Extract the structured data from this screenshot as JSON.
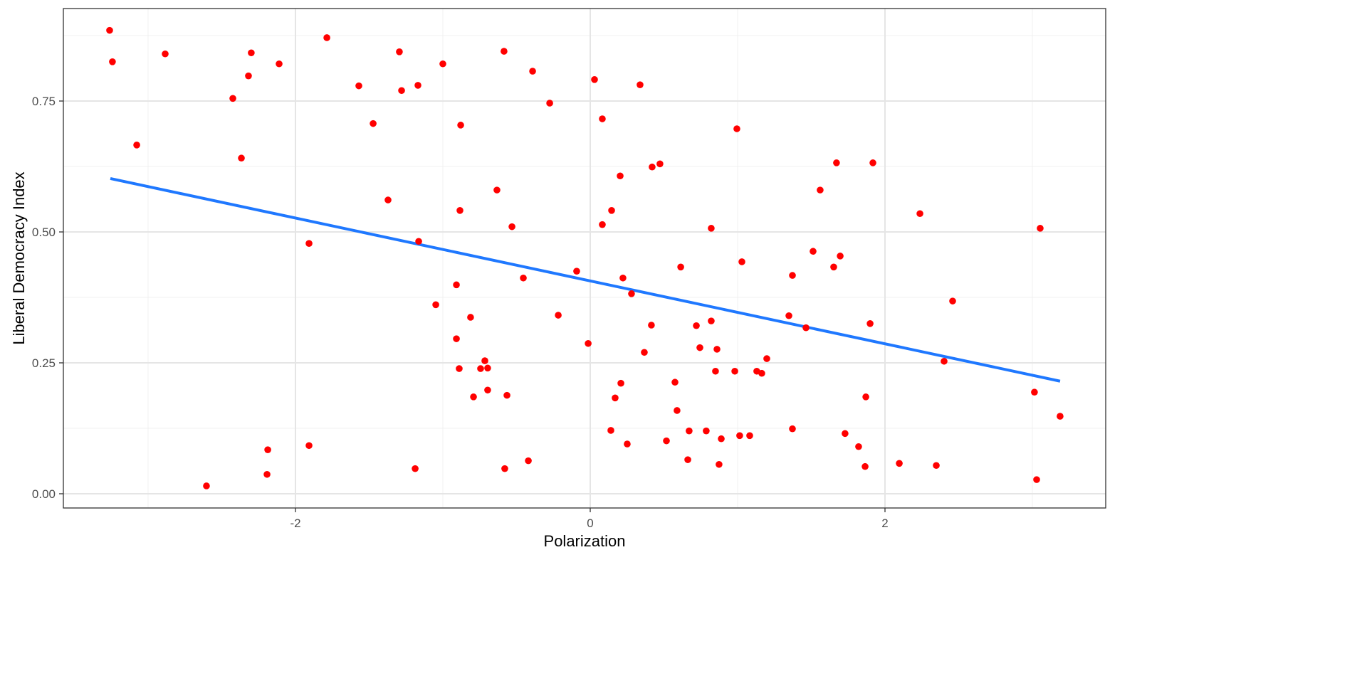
{
  "chart_data": {
    "type": "scatter",
    "title": "",
    "xlabel": "Polarization",
    "ylabel": "Liberal Democracy Index",
    "xlim": [
      -3.5,
      3.5
    ],
    "ylim": [
      -0.05,
      0.91
    ],
    "x_ticks": [
      -2,
      0,
      2
    ],
    "x_tick_labels": [
      "-2",
      "0",
      "2"
    ],
    "y_ticks": [
      0,
      0.25,
      0.5,
      0.75
    ],
    "y_tick_labels": [
      "0.00",
      "0.25",
      "0.50",
      "0.75"
    ],
    "grid": true,
    "legend": "none",
    "colors": {
      "points": "#FF0000",
      "fit_line": "#1F78FF"
    },
    "points": [
      [
        -3.261,
        0.885
      ],
      [
        -3.242,
        0.825
      ],
      [
        -3.077,
        0.666
      ],
      [
        -2.884,
        0.84
      ],
      [
        -2.604,
        0.015
      ],
      [
        -2.425,
        0.755
      ],
      [
        -2.367,
        0.641
      ],
      [
        -2.319,
        0.798
      ],
      [
        -2.3,
        0.842
      ],
      [
        -2.188,
        0.084
      ],
      [
        -2.193,
        0.037
      ],
      [
        -2.111,
        0.821
      ],
      [
        -1.908,
        0.478
      ],
      [
        -1.908,
        0.092
      ],
      [
        -1.787,
        0.871
      ],
      [
        -1.57,
        0.779
      ],
      [
        -1.473,
        0.707
      ],
      [
        -1.372,
        0.561
      ],
      [
        -1.295,
        0.844
      ],
      [
        -1.28,
        0.77
      ],
      [
        -1.188,
        0.048
      ],
      [
        -1.169,
        0.78
      ],
      [
        -1.164,
        0.482
      ],
      [
        -1.048,
        0.361
      ],
      [
        -1.0,
        0.821
      ],
      [
        -0.908,
        0.399
      ],
      [
        -0.908,
        0.296
      ],
      [
        -0.889,
        0.239
      ],
      [
        -0.884,
        0.541
      ],
      [
        -0.879,
        0.704
      ],
      [
        -0.812,
        0.337
      ],
      [
        -0.792,
        0.185
      ],
      [
        -0.744,
        0.239
      ],
      [
        -0.715,
        0.254
      ],
      [
        -0.696,
        0.24
      ],
      [
        -0.696,
        0.198
      ],
      [
        -0.633,
        0.58
      ],
      [
        -0.585,
        0.845
      ],
      [
        -0.58,
        0.048
      ],
      [
        -0.565,
        0.188
      ],
      [
        -0.531,
        0.51
      ],
      [
        -0.454,
        0.412
      ],
      [
        -0.42,
        0.063
      ],
      [
        -0.391,
        0.807
      ],
      [
        -0.275,
        0.746
      ],
      [
        -0.217,
        0.341
      ],
      [
        -0.092,
        0.425
      ],
      [
        -0.014,
        0.287
      ],
      [
        0.029,
        0.791
      ],
      [
        0.082,
        0.716
      ],
      [
        0.082,
        0.514
      ],
      [
        0.14,
        0.121
      ],
      [
        0.145,
        0.541
      ],
      [
        0.169,
        0.183
      ],
      [
        0.203,
        0.607
      ],
      [
        0.208,
        0.211
      ],
      [
        0.222,
        0.412
      ],
      [
        0.251,
        0.095
      ],
      [
        0.28,
        0.382
      ],
      [
        0.338,
        0.781
      ],
      [
        0.367,
        0.27
      ],
      [
        0.415,
        0.322
      ],
      [
        0.42,
        0.624
      ],
      [
        0.473,
        0.63
      ],
      [
        0.517,
        0.101
      ],
      [
        0.575,
        0.213
      ],
      [
        0.589,
        0.159
      ],
      [
        0.614,
        0.433
      ],
      [
        0.662,
        0.065
      ],
      [
        0.671,
        0.12
      ],
      [
        0.72,
        0.321
      ],
      [
        0.744,
        0.279
      ],
      [
        0.787,
        0.12
      ],
      [
        0.821,
        0.507
      ],
      [
        0.821,
        0.33
      ],
      [
        0.85,
        0.234
      ],
      [
        0.86,
        0.276
      ],
      [
        0.874,
        0.056
      ],
      [
        0.889,
        0.105
      ],
      [
        0.981,
        0.234
      ],
      [
        0.995,
        0.697
      ],
      [
        1.014,
        0.111
      ],
      [
        1.029,
        0.443
      ],
      [
        1.082,
        0.111
      ],
      [
        1.13,
        0.234
      ],
      [
        1.164,
        0.23
      ],
      [
        1.198,
        0.258
      ],
      [
        1.348,
        0.34
      ],
      [
        1.372,
        0.417
      ],
      [
        1.372,
        0.124
      ],
      [
        1.464,
        0.317
      ],
      [
        1.512,
        0.463
      ],
      [
        1.56,
        0.58
      ],
      [
        1.652,
        0.433
      ],
      [
        1.671,
        0.632
      ],
      [
        1.696,
        0.454
      ],
      [
        1.729,
        0.115
      ],
      [
        1.821,
        0.09
      ],
      [
        1.865,
        0.052
      ],
      [
        1.87,
        0.185
      ],
      [
        1.899,
        0.325
      ],
      [
        1.918,
        0.632
      ],
      [
        2.097,
        0.058
      ],
      [
        2.237,
        0.535
      ],
      [
        2.348,
        0.054
      ],
      [
        2.401,
        0.253
      ],
      [
        2.459,
        0.368
      ],
      [
        3.014,
        0.194
      ],
      [
        3.029,
        0.027
      ],
      [
        3.053,
        0.507
      ],
      [
        3.188,
        0.148
      ]
    ],
    "fit_line": {
      "x": [
        -3.256,
        3.188
      ],
      "y": [
        0.602,
        0.215
      ]
    }
  }
}
